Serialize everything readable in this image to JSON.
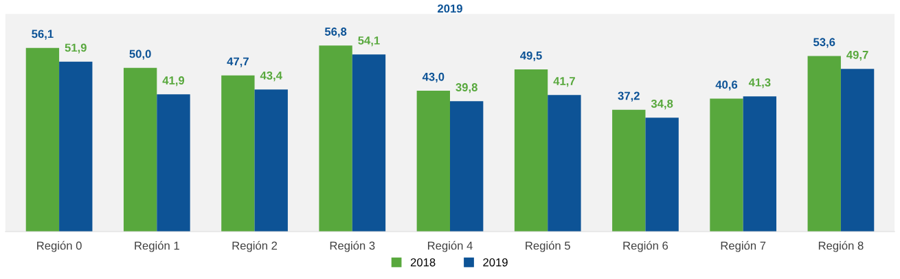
{
  "chart_data": {
    "type": "bar",
    "title": "2019",
    "categories": [
      "Región 0",
      "Región 1",
      "Región 2",
      "Región 3",
      "Región 4",
      "Región 5",
      "Región 6",
      "Región 7",
      "Región 8"
    ],
    "series": [
      {
        "name": "2018",
        "color": "#58a83d",
        "values": [
          56.1,
          50.0,
          47.7,
          56.8,
          43.0,
          49.5,
          37.2,
          40.6,
          53.6
        ],
        "value_labels": [
          "56,1",
          "50,0",
          "47,7",
          "56,8",
          "43,0",
          "49,5",
          "37,2",
          "40,6",
          "53,6"
        ]
      },
      {
        "name": "2019",
        "color": "#0d5396",
        "values": [
          51.9,
          41.9,
          43.4,
          54.1,
          39.8,
          41.7,
          34.8,
          41.3,
          49.7
        ],
        "value_labels": [
          "51,9",
          "41,9",
          "43,4",
          "54,1",
          "39,8",
          "41,7",
          "34,8",
          "41,3",
          "49,7"
        ]
      }
    ],
    "legend": "bottom",
    "grid": false
  }
}
